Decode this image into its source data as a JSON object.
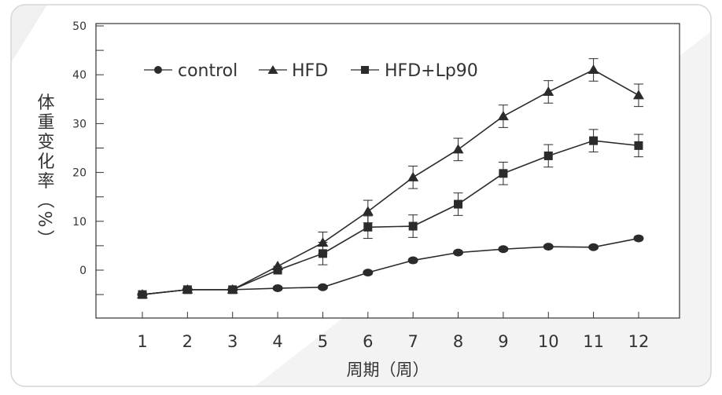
{
  "chart_data": {
    "type": "line",
    "xlabel": "周期（周）",
    "ylabel": "体重变化率（%）",
    "x": [
      1,
      2,
      3,
      4,
      5,
      6,
      7,
      8,
      9,
      10,
      11,
      12
    ],
    "xticks": [
      "1",
      "2",
      "3",
      "4",
      "5",
      "6",
      "7",
      "8",
      "9",
      "10",
      "11",
      "12"
    ],
    "xlim": [
      0,
      13
    ],
    "ylim": [
      -10,
      50
    ],
    "yticks": [
      0,
      10,
      20,
      30,
      40,
      50
    ],
    "ytick_labels": [
      "0",
      "10",
      "20",
      "30",
      "40",
      "50"
    ],
    "grid": false,
    "legend_position": "top-left",
    "series": [
      {
        "name": "control",
        "marker": "circle",
        "values": [
          -5,
          -4,
          -4,
          -3.7,
          -3.5,
          -0.5,
          2,
          3.6,
          4.3,
          4.8,
          4.7,
          6.5
        ],
        "errors": [
          0,
          0,
          0,
          0,
          0,
          0,
          0,
          0,
          0,
          0,
          0,
          0
        ]
      },
      {
        "name": "HFD",
        "marker": "triangle",
        "values": [
          -5,
          -4,
          -4,
          0.8,
          5.6,
          12,
          19,
          24.7,
          31.5,
          36.5,
          41,
          35.8
        ],
        "errors": [
          0,
          0,
          0,
          0,
          2.2,
          2.3,
          2.3,
          2.3,
          2.3,
          2.3,
          2.3,
          2.3
        ]
      },
      {
        "name": "HFD+Lp90",
        "marker": "square",
        "values": [
          -5,
          -4,
          -4,
          0,
          3.4,
          8.8,
          9,
          13.5,
          19.8,
          23.4,
          26.5,
          25.5
        ],
        "errors": [
          0,
          0,
          0,
          0,
          2.3,
          2.3,
          2.3,
          2.3,
          2.3,
          2.3,
          2.3,
          2.3
        ]
      }
    ]
  },
  "colors": {
    "line": "#2b2b2b",
    "axis": "#333333",
    "plot_bg": "#f2f2f2",
    "card_border": "#d6d6d6"
  }
}
